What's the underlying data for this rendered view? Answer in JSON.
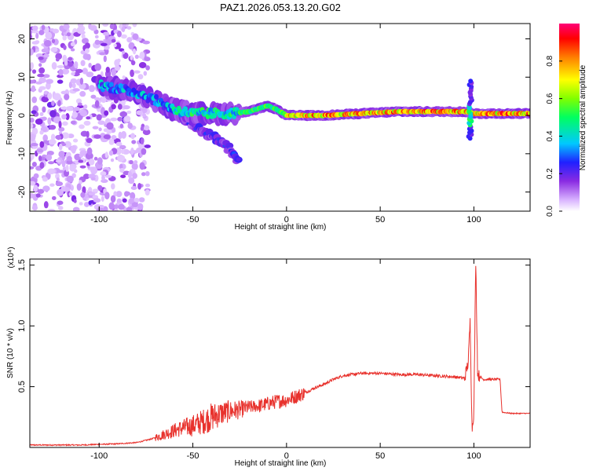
{
  "title": "PAZ1.2026.053.13.20.G02",
  "chart_data": [
    {
      "type": "heatmap",
      "name": "spectrogram",
      "xlabel": "Height of straight line (km)",
      "ylabel": "Frequency (Hz)",
      "xlim": [
        -137,
        130
      ],
      "ylim": [
        -25,
        24
      ],
      "xticks": [
        -100,
        -50,
        0,
        50,
        100
      ],
      "yticks": [
        -20,
        -10,
        0,
        10,
        20
      ],
      "colorbar": {
        "label": "Normalized spectral amplitude",
        "range": [
          0,
          1
        ],
        "ticks": [
          0.0,
          0.2,
          0.4,
          0.6,
          0.8
        ],
        "tick_labels": [
          "0.0",
          "0.2",
          "0.4",
          "0.6",
          "0.8"
        ]
      },
      "features": {
        "noise_region_x": [
          -137,
          -82
        ],
        "main_ridge": [
          [
            -100,
            8
          ],
          [
            -80,
            6
          ],
          [
            -70,
            4
          ],
          [
            -60,
            1.5
          ],
          [
            -50,
            0.5
          ],
          [
            -40,
            0.5
          ],
          [
            -30,
            0.5
          ],
          [
            -20,
            1
          ],
          [
            -10,
            2.5
          ],
          [
            -5,
            1.5
          ],
          [
            0,
            0
          ],
          [
            10,
            0
          ],
          [
            20,
            0
          ],
          [
            40,
            0.5
          ],
          [
            60,
            1
          ],
          [
            80,
            1
          ],
          [
            95,
            1
          ],
          [
            100,
            0.5
          ],
          [
            115,
            0.5
          ],
          [
            130,
            0.5
          ]
        ],
        "descending_branch": [
          [
            -55,
            -1
          ],
          [
            -45,
            -4
          ],
          [
            -38,
            -6
          ],
          [
            -30,
            -9
          ],
          [
            -25,
            -12
          ]
        ],
        "spike_x": 98
      }
    },
    {
      "type": "line",
      "name": "snr",
      "xlabel": "Height of straight line (km)",
      "ylabel": "SNR (10 * v/v)",
      "scale_label": "(x10⁴)",
      "xlim": [
        -137,
        130
      ],
      "ylim": [
        0,
        1.55
      ],
      "xticks": [
        -100,
        -50,
        0,
        50,
        100
      ],
      "yticks": [
        0.5,
        1.0,
        1.5
      ],
      "ytick_labels": [
        "0.5",
        "1.0",
        "1.5"
      ],
      "color": "#e8322d",
      "series": [
        {
          "name": "SNR",
          "x": [
            -137,
            -110,
            -90,
            -80,
            -72,
            -65,
            -58,
            -50,
            -45,
            -40,
            -35,
            -30,
            -25,
            -20,
            -15,
            -10,
            -5,
            0,
            5,
            10,
            15,
            20,
            25,
            30,
            35,
            40,
            50,
            60,
            70,
            80,
            90,
            95,
            97,
            98,
            99,
            100,
            101,
            102,
            105,
            110,
            114,
            115,
            120,
            130
          ],
          "y": [
            0.02,
            0.02,
            0.03,
            0.04,
            0.07,
            0.11,
            0.15,
            0.18,
            0.21,
            0.25,
            0.28,
            0.3,
            0.31,
            0.33,
            0.34,
            0.36,
            0.38,
            0.39,
            0.42,
            0.45,
            0.49,
            0.52,
            0.56,
            0.59,
            0.6,
            0.61,
            0.61,
            0.6,
            0.6,
            0.59,
            0.58,
            0.57,
            0.7,
            1.05,
            0.15,
            0.3,
            1.55,
            0.6,
            0.56,
            0.56,
            0.56,
            0.29,
            0.28,
            0.28
          ]
        }
      ]
    }
  ]
}
